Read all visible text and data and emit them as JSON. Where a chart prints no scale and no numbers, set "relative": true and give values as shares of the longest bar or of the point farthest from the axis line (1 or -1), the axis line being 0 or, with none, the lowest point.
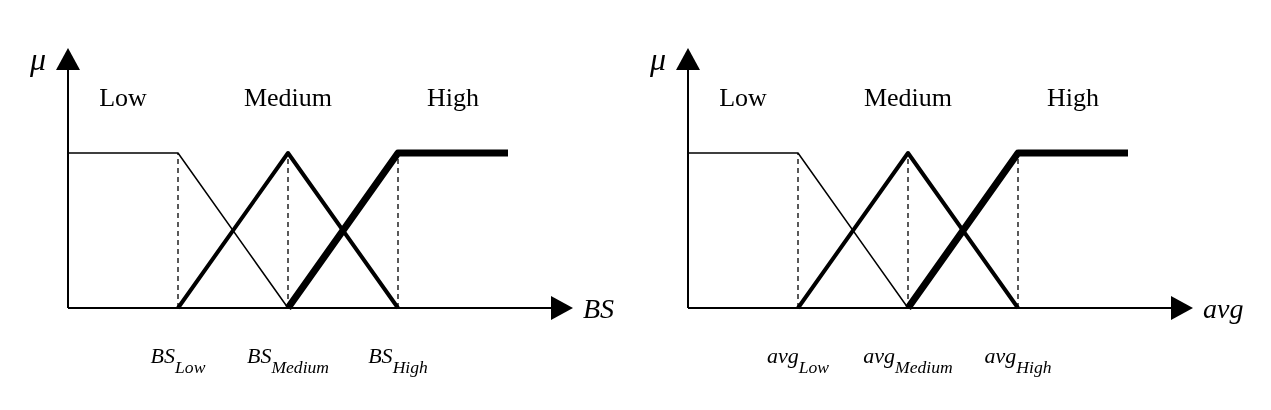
{
  "chart_data": [
    {
      "type": "line",
      "relative": true,
      "ylabel": "μ",
      "xlabel": "BS",
      "categories": [
        null,
        "BS$_{Low}$",
        "BS$_{Medium}$",
        "BS$_{High}$",
        null
      ],
      "line_style": "solid",
      "marker": "none",
      "series": [
        {
          "name": "Low",
          "color": "#000000",
          "values": [
            1,
            1,
            0,
            null,
            null
          ]
        },
        {
          "name": "Medium",
          "color": "#000000",
          "values": [
            null,
            0,
            1,
            0,
            null
          ]
        },
        {
          "name": "High",
          "color": "#000000",
          "values": [
            null,
            null,
            0,
            1,
            1
          ]
        }
      ],
      "ref_lines": [
        {
          "axis": "x",
          "value": "BS$_{Low}$",
          "line_style": "dashed",
          "color": "#000000"
        },
        {
          "axis": "x",
          "value": "BS$_{Medium}$",
          "line_style": "dashed",
          "color": "#000000"
        },
        {
          "axis": "x",
          "value": "BS$_{High}$",
          "line_style": "dashed",
          "color": "#000000"
        }
      ]
    },
    {
      "type": "line",
      "relative": true,
      "ylabel": "μ",
      "xlabel": "avg",
      "categories": [
        null,
        "avg$_{Low}$",
        "avg$_{Medium}$",
        "avg$_{High}$",
        null
      ],
      "line_style": "solid",
      "marker": "none",
      "series": [
        {
          "name": "Low",
          "color": "#000000",
          "values": [
            1,
            1,
            0,
            null,
            null
          ]
        },
        {
          "name": "Medium",
          "color": "#000000",
          "values": [
            null,
            0,
            1,
            0,
            null
          ]
        },
        {
          "name": "High",
          "color": "#000000",
          "values": [
            null,
            null,
            0,
            1,
            1
          ]
        }
      ],
      "ref_lines": [
        {
          "axis": "x",
          "value": "avg$_{Low}$",
          "line_style": "dashed",
          "color": "#000000"
        },
        {
          "axis": "x",
          "value": "avg$_{Medium}$",
          "line_style": "dashed",
          "color": "#000000"
        },
        {
          "axis": "x",
          "value": "avg$_{High}$",
          "line_style": "dashed",
          "color": "#000000"
        }
      ]
    }
  ]
}
